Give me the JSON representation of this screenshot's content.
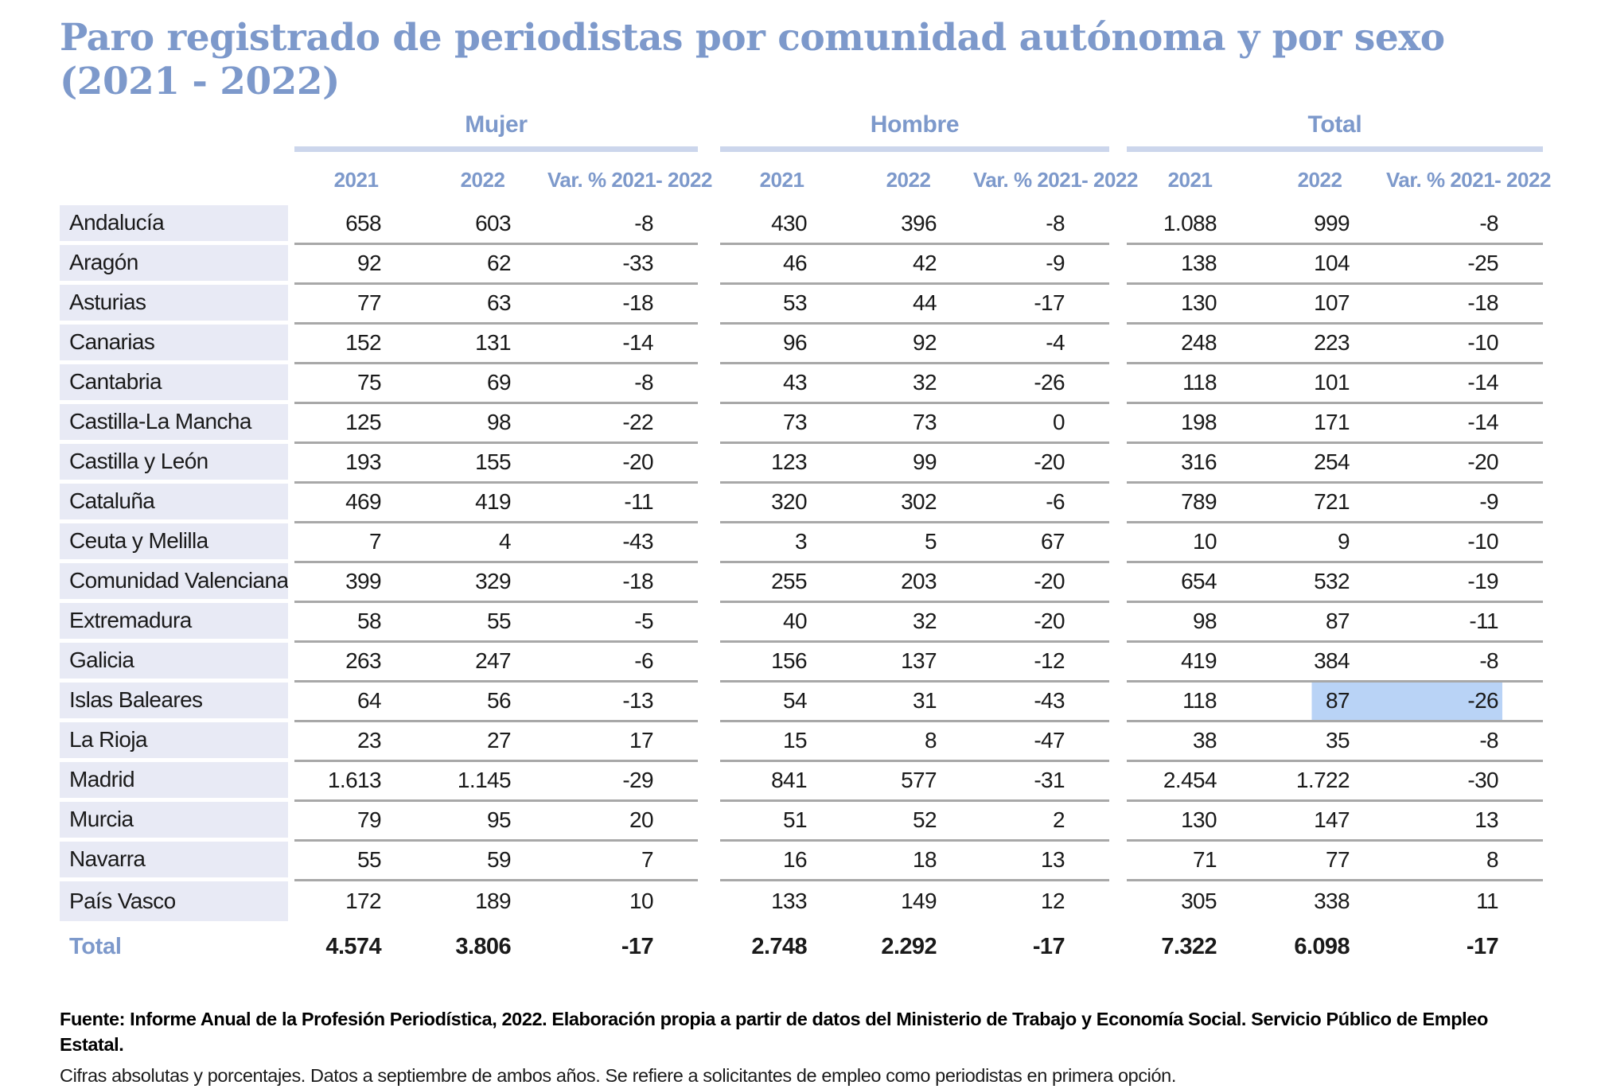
{
  "chart_data": {
    "type": "table",
    "title": "Paro registrado de periodistas por comunidad autónoma y por sexo (2021 - 2022)",
    "title_line1": "Paro registrado de periodistas por comunidad autónoma y por sexo",
    "title_line2": "(2021 - 2022)",
    "column_groups": [
      "Mujer",
      "Hombre",
      "Total"
    ],
    "sub_columns": [
      "2021",
      "2022",
      "Var. % 2021- 2022"
    ],
    "rows": [
      {
        "region": "Andalucía",
        "values": [
          "658",
          "603",
          "-8",
          "430",
          "396",
          "-8",
          "1.088",
          "999",
          "-8"
        ]
      },
      {
        "region": "Aragón",
        "values": [
          "92",
          "62",
          "-33",
          "46",
          "42",
          "-9",
          "138",
          "104",
          "-25"
        ]
      },
      {
        "region": "Asturias",
        "values": [
          "77",
          "63",
          "-18",
          "53",
          "44",
          "-17",
          "130",
          "107",
          "-18"
        ]
      },
      {
        "region": "Canarias",
        "values": [
          "152",
          "131",
          "-14",
          "96",
          "92",
          "-4",
          "248",
          "223",
          "-10"
        ]
      },
      {
        "region": "Cantabria",
        "values": [
          "75",
          "69",
          "-8",
          "43",
          "32",
          "-26",
          "118",
          "101",
          "-14"
        ]
      },
      {
        "region": "Castilla-La Mancha",
        "values": [
          "125",
          "98",
          "-22",
          "73",
          "73",
          "0",
          "198",
          "171",
          "-14"
        ]
      },
      {
        "region": "Castilla y León",
        "values": [
          "193",
          "155",
          "-20",
          "123",
          "99",
          "-20",
          "316",
          "254",
          "-20"
        ]
      },
      {
        "region": "Cataluña",
        "values": [
          "469",
          "419",
          "-11",
          "320",
          "302",
          "-6",
          "789",
          "721",
          "-9"
        ]
      },
      {
        "region": "Ceuta y Melilla",
        "values": [
          "7",
          "4",
          "-43",
          "3",
          "5",
          "67",
          "10",
          "9",
          "-10"
        ]
      },
      {
        "region": "Comunidad Valenciana",
        "values": [
          "399",
          "329",
          "-18",
          "255",
          "203",
          "-20",
          "654",
          "532",
          "-19"
        ]
      },
      {
        "region": "Extremadura",
        "values": [
          "58",
          "55",
          "-5",
          "40",
          "32",
          "-20",
          "98",
          "87",
          "-11"
        ]
      },
      {
        "region": "Galicia",
        "values": [
          "263",
          "247",
          "-6",
          "156",
          "137",
          "-12",
          "419",
          "384",
          "-8"
        ]
      },
      {
        "region": "Islas Baleares",
        "values": [
          "64",
          "56",
          "-13",
          "54",
          "31",
          "-43",
          "118",
          "87",
          "-26"
        ]
      },
      {
        "region": "La Rioja",
        "values": [
          "23",
          "27",
          "17",
          "15",
          "8",
          "-47",
          "38",
          "35",
          "-8"
        ]
      },
      {
        "region": "Madrid",
        "values": [
          "1.613",
          "1.145",
          "-29",
          "841",
          "577",
          "-31",
          "2.454",
          "1.722",
          "-30"
        ]
      },
      {
        "region": "Murcia",
        "values": [
          "79",
          "95",
          "20",
          "51",
          "52",
          "2",
          "130",
          "147",
          "13"
        ]
      },
      {
        "region": "Navarra",
        "values": [
          "55",
          "59",
          "7",
          "16",
          "18",
          "13",
          "71",
          "77",
          "8"
        ]
      },
      {
        "region": "País Vasco",
        "values": [
          "172",
          "189",
          "10",
          "133",
          "149",
          "12",
          "305",
          "338",
          "11"
        ]
      }
    ],
    "total": {
      "label": "Total",
      "values": [
        "4.574",
        "3.806",
        "-17",
        "2.748",
        "2.292",
        "-17",
        "7.322",
        "6.098",
        "-17"
      ]
    },
    "highlight": {
      "region": "Islas Baleares",
      "row_index": 12,
      "cell_indices": [
        7,
        8
      ],
      "columns": [
        "Total 2022",
        "Total Var. % 2021- 2022"
      ],
      "color": "#b9d3f6"
    }
  },
  "footnotes": {
    "source": "Fuente: Informe Anual de la Profesión Periodística, 2022. Elaboración propia a partir de datos del Ministerio de Trabajo y Economía Social. Servicio Público de Empleo Estatal.",
    "method": "Cifras absolutas y porcentajes. Datos a septiembre de ambos años. Se refiere a solicitantes de empleo como periodistas en primera opción."
  },
  "colors": {
    "accent_blue": "#7d99cb",
    "label_bg": "#e8eaf5",
    "group_underline": "#ccd6ec",
    "row_line": "#a8a8a8",
    "highlight": "#b9d3f6"
  }
}
